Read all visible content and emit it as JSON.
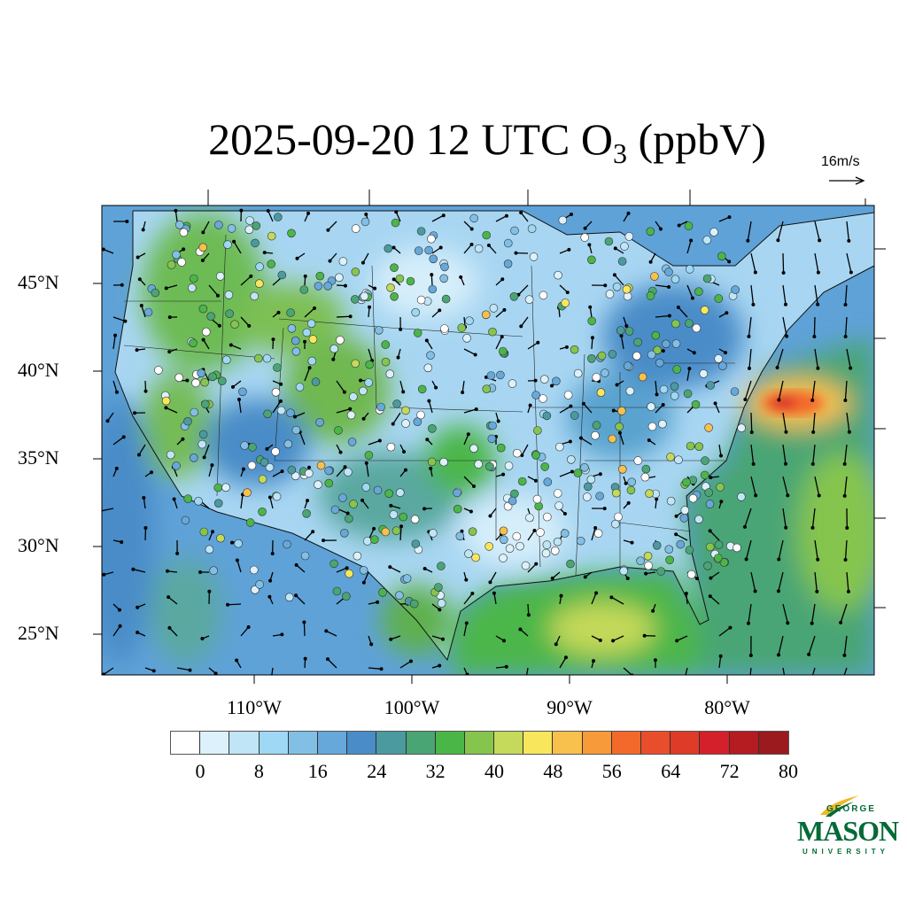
{
  "title": {
    "main": "2025-09-20 12 UTC O",
    "subscript": "3",
    "units": " (ppbV)"
  },
  "vector_legend": {
    "label": "16m/s"
  },
  "axes": {
    "lat_labels": [
      "45°N",
      "40°N",
      "35°N",
      "30°N",
      "25°N"
    ],
    "lon_labels": [
      "110°W",
      "100°W",
      "90°W",
      "80°W"
    ]
  },
  "colorbar": {
    "colors": [
      "#ffffff",
      "#dcf1fb",
      "#bfe5f7",
      "#9ed8f5",
      "#82bfe5",
      "#66a8da",
      "#4a8cc8",
      "#4a9aa0",
      "#4aa574",
      "#4bb648",
      "#85c54e",
      "#c5d95a",
      "#f8e75d",
      "#f8c04c",
      "#f79a3a",
      "#f3692b",
      "#e94e2c",
      "#de3b28",
      "#d4202a",
      "#b41c22",
      "#9a1a1d"
    ],
    "labels": [
      "0",
      "8",
      "16",
      "24",
      "32",
      "40",
      "48",
      "56",
      "64",
      "72",
      "80"
    ]
  },
  "logo": {
    "line1": "GEORGE",
    "line2": "MASON",
    "line3": "UNIVERSITY"
  }
}
